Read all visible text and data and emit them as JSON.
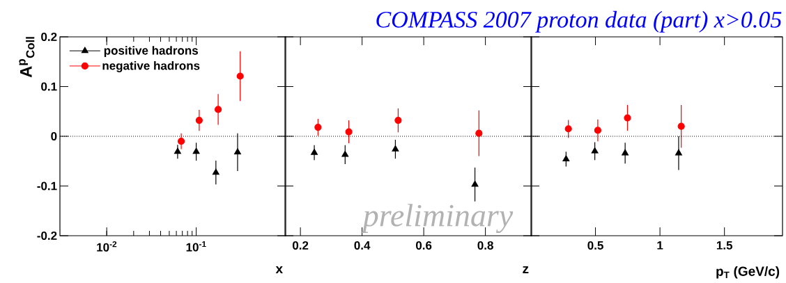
{
  "chart_data": [
    {
      "type": "scatter",
      "ylabel": "A$^{p}$$_{Coll}$",
      "xlabel": "x",
      "log": "x",
      "xlim": [
        0.003,
        1
      ],
      "ylim": [
        -0.2,
        0.2
      ],
      "xticks": [
        {
          "value": 0.01,
          "label": "10$^{-2}$"
        },
        {
          "value": 0.1,
          "label": "10$^{-1}$"
        }
      ],
      "yticks": [
        -0.2,
        -0.1,
        0,
        0.1,
        0.2
      ],
      "legend": "top left",
      "ref_lines": [
        {
          "axis": "y",
          "value": 0,
          "line_style": "dotted"
        }
      ],
      "series": [
        {
          "name": "positive hadrons",
          "color": "#000000",
          "marker": "triangle",
          "x": [
            0.062,
            0.1,
            0.166,
            0.29
          ],
          "values": [
            -0.031,
            -0.031,
            -0.073,
            -0.032
          ],
          "errors": [
            0.014,
            0.018,
            0.024,
            0.038
          ]
        },
        {
          "name": "negative hadrons",
          "color": "#ff0000",
          "marker": "circle",
          "x": [
            0.068,
            0.108,
            0.176,
            0.31
          ],
          "values": [
            -0.01,
            0.032,
            0.054,
            0.121
          ],
          "errors": [
            0.016,
            0.021,
            0.031,
            0.05
          ]
        }
      ]
    },
    {
      "type": "scatter",
      "xlabel": "z",
      "xlim": [
        0.15,
        0.95
      ],
      "ylim": [
        -0.2,
        0.2
      ],
      "xticks": [
        0.2,
        0.4,
        0.6,
        0.8
      ],
      "yticks": [
        -0.2,
        -0.1,
        0,
        0.1,
        0.2
      ],
      "tick_labels": "x",
      "annotations": [
        "preliminary"
      ],
      "ref_lines": [
        {
          "axis": "y",
          "value": 0,
          "line_style": "dotted"
        }
      ],
      "series": [
        {
          "color": "#000000",
          "marker": "triangle",
          "x": [
            0.245,
            0.345,
            0.508,
            0.766
          ],
          "values": [
            -0.033,
            -0.037,
            -0.026,
            -0.097
          ],
          "errors": [
            0.015,
            0.019,
            0.019,
            0.034
          ]
        },
        {
          "color": "#ff0000",
          "marker": "circle",
          "x": [
            0.257,
            0.357,
            0.517,
            0.779
          ],
          "values": [
            0.018,
            0.009,
            0.032,
            0.006
          ],
          "errors": [
            0.017,
            0.023,
            0.024,
            0.046
          ]
        }
      ]
    },
    {
      "type": "scatter",
      "title": "COMPASS 2007 proton data (part) x>0.05",
      "xlabel": "p$_{T}$ (GeV/c)",
      "xlim": [
        0,
        1.95
      ],
      "ylim": [
        -0.2,
        0.2
      ],
      "xticks": [
        0.5,
        1,
        1.5
      ],
      "yticks": [
        -0.2,
        -0.1,
        0,
        0.1,
        0.2
      ],
      "tick_labels": "x",
      "ref_lines": [
        {
          "axis": "y",
          "value": 0,
          "line_style": "dotted"
        }
      ],
      "series": [
        {
          "color": "#000000",
          "marker": "triangle",
          "x": [
            0.272,
            0.495,
            0.73,
            1.145
          ],
          "values": [
            -0.046,
            -0.03,
            -0.034,
            -0.034
          ],
          "errors": [
            0.015,
            0.018,
            0.021,
            0.034
          ]
        },
        {
          "color": "#ff0000",
          "marker": "circle",
          "x": [
            0.29,
            0.518,
            0.748,
            1.165
          ],
          "values": [
            0.015,
            0.012,
            0.037,
            0.02
          ],
          "errors": [
            0.018,
            0.022,
            0.026,
            0.043
          ]
        }
      ]
    }
  ]
}
